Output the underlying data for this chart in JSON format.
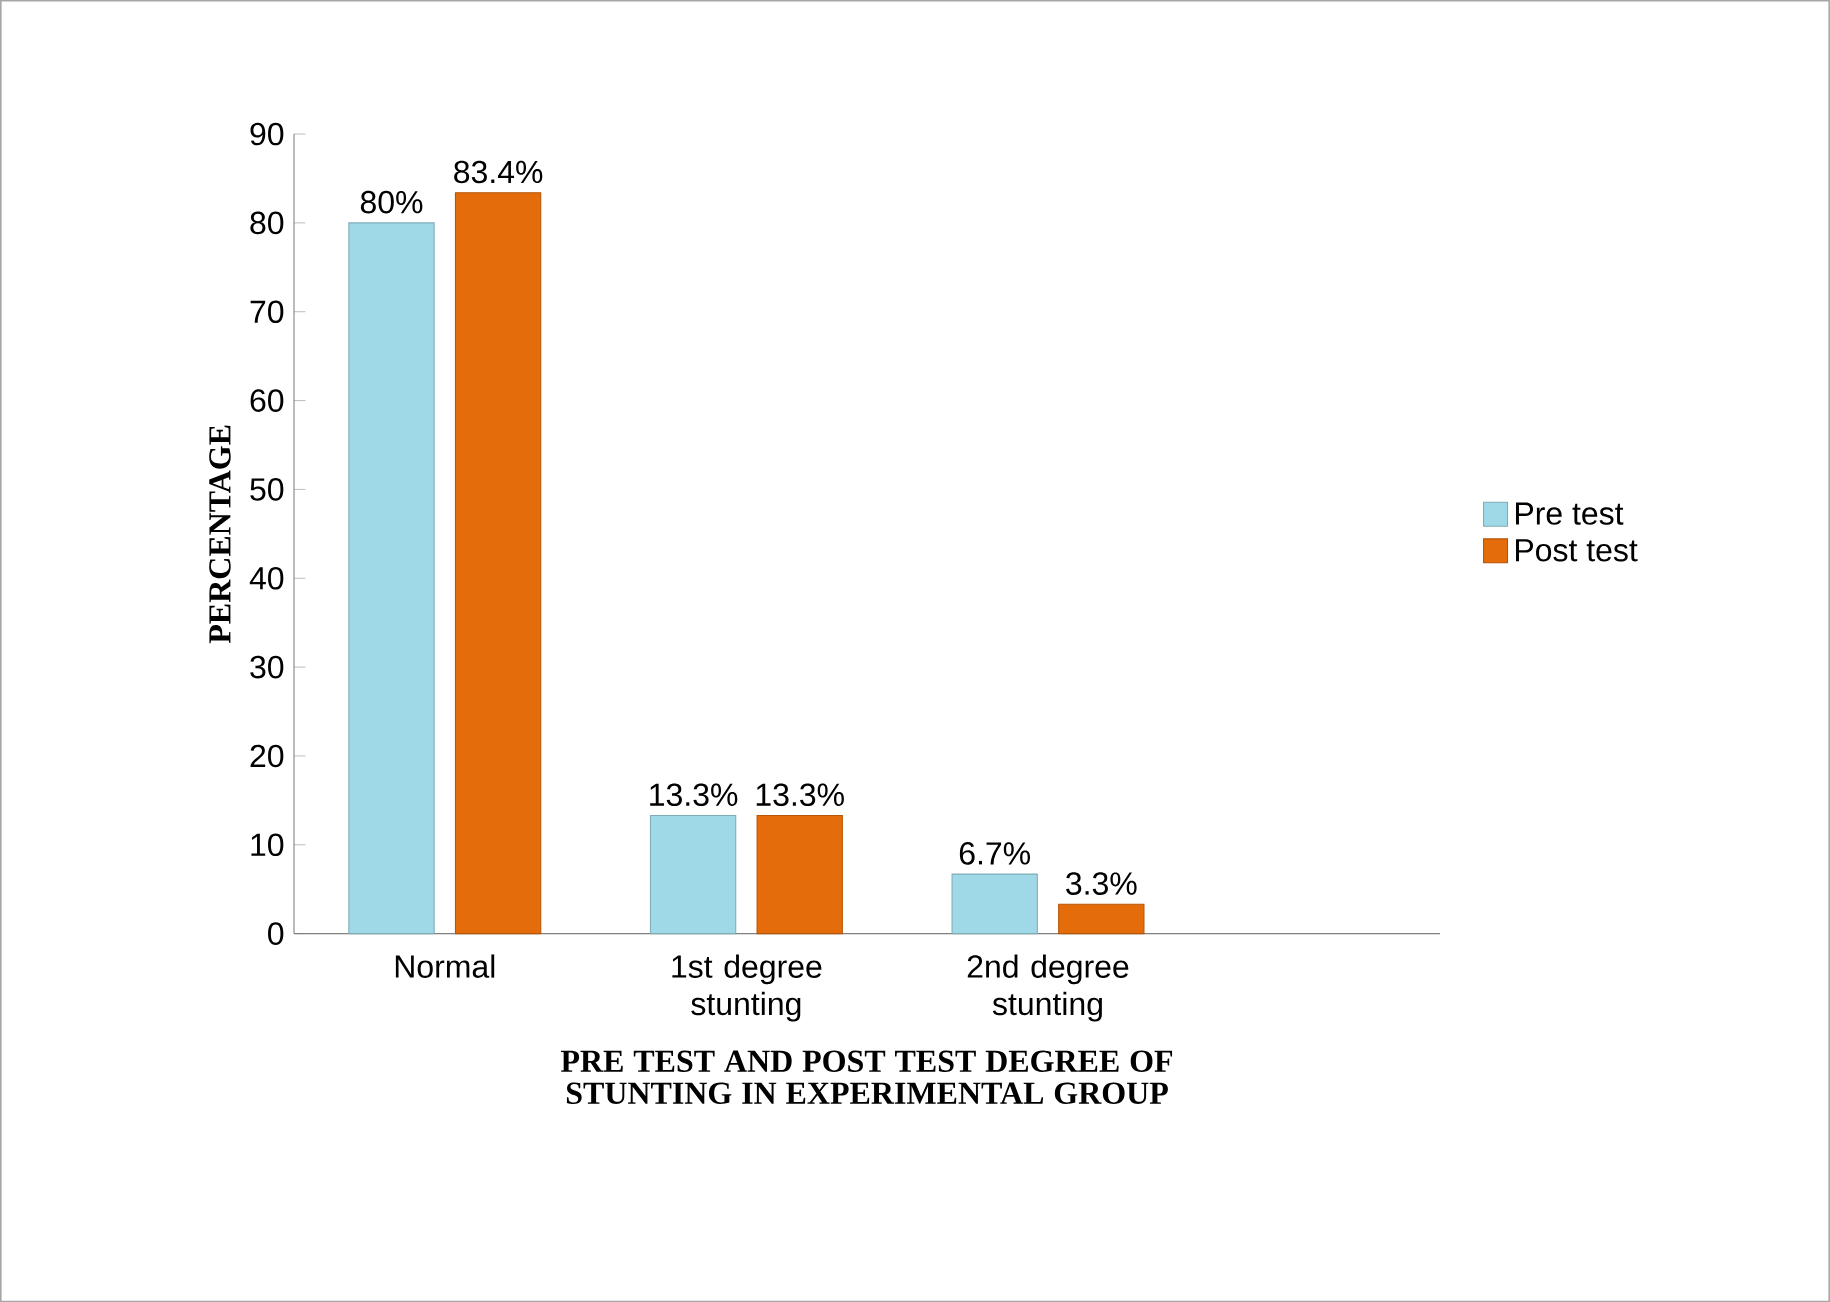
{
  "chart_data": {
    "type": "bar",
    "xlabel": "PRE TEST AND POST TEST DEGREE OF STUNTING IN EXPERIMENTAL GROUP",
    "ylabel": "PERCENTAGE",
    "categories": [
      "Normal",
      "1st degree stunting",
      "2nd degree stunting"
    ],
    "series": [
      {
        "name": "Pre test",
        "color": "#9fd8e6",
        "values": [
          80,
          13.3,
          6.7
        ],
        "value_labels": [
          "80%",
          "13.3%",
          "6.7%"
        ]
      },
      {
        "name": "Post test",
        "color": "#e46c0a",
        "values": [
          83.4,
          13.3,
          3.3
        ],
        "value_labels": [
          "83.4%",
          "13.3%",
          "3.3%"
        ]
      }
    ],
    "ylim": [
      0,
      90
    ],
    "yticks": [
      0,
      10,
      20,
      30,
      40,
      50,
      60,
      70,
      80,
      90
    ],
    "grid": false,
    "legend": "right"
  }
}
